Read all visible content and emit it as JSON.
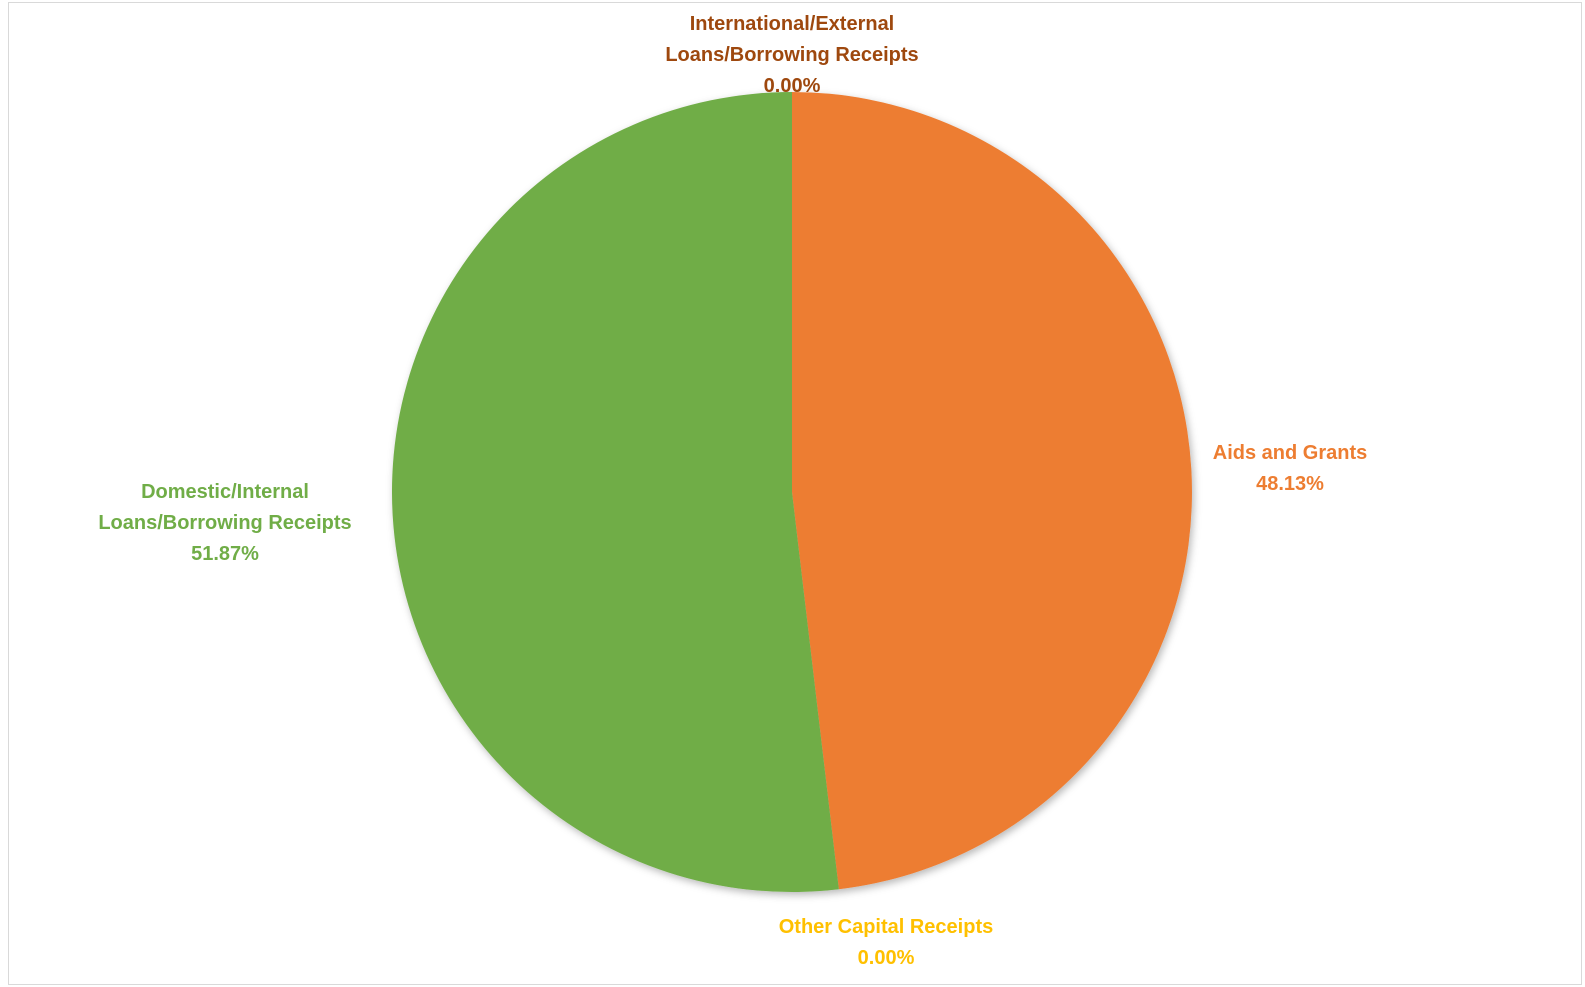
{
  "chart_data": {
    "type": "pie",
    "title": "",
    "start_angle_deg": 0,
    "direction": "clockwise",
    "slices": [
      {
        "name": "Aids and Grants",
        "label_lines": [
          "Aids and Grants"
        ],
        "value_pct": 48.13,
        "value_label": "48.13%",
        "color": "#ED7D31"
      },
      {
        "name": "Other Capital Receipts",
        "label_lines": [
          "Other Capital Receipts"
        ],
        "value_pct": 0.0,
        "value_label": "0.00%",
        "color": "#FFC000"
      },
      {
        "name": "Domestic/Internal Loans/Borrowing Receipts",
        "label_lines": [
          "Domestic/Internal",
          "Loans/Borrowing Receipts"
        ],
        "value_pct": 51.87,
        "value_label": "51.87%",
        "color": "#70AD47"
      },
      {
        "name": "International/External Loans/Borrowing Receipts",
        "label_lines": [
          "International/External",
          "Loans/Borrowing Receipts"
        ],
        "value_pct": 0.0,
        "value_label": "0.00%",
        "color": "#9E480E"
      }
    ]
  }
}
